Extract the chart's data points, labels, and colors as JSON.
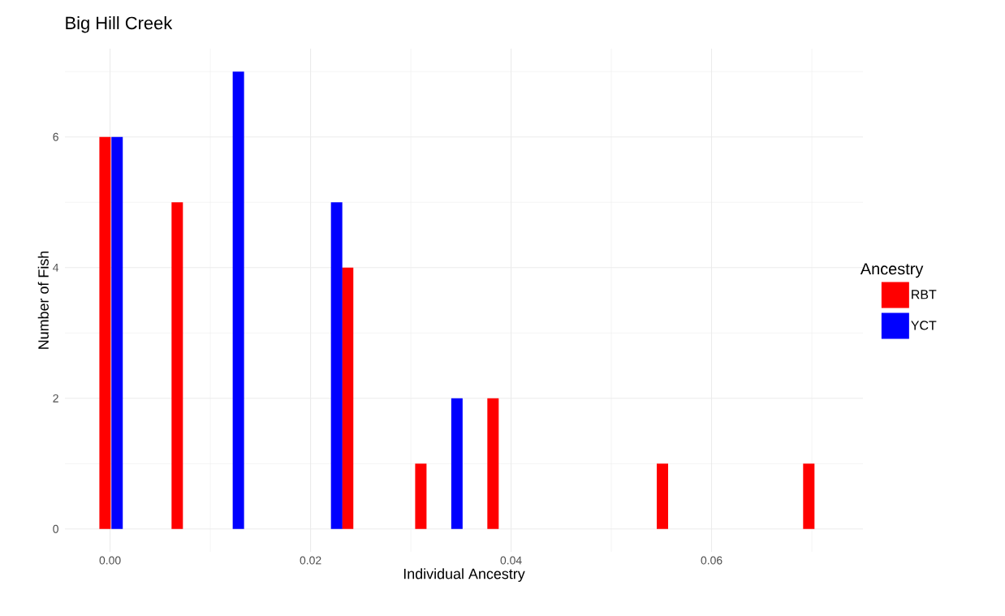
{
  "chart_data": {
    "type": "bar",
    "title": "Big Hill Creek",
    "xlabel": "Individual Ancestry",
    "ylabel": "Number of Fish",
    "legend_title": "Ancestry",
    "series": [
      {
        "name": "RBT",
        "color": "#ff0000",
        "x": [
          -0.0005,
          0.0067,
          0.0237,
          0.031,
          0.0382,
          0.0551,
          0.0697
        ],
        "values": [
          6,
          5,
          4,
          1,
          2,
          1,
          1
        ]
      },
      {
        "name": "YCT",
        "color": "#0000ff",
        "x": [
          0.0007,
          0.0128,
          0.0226,
          0.0346
        ],
        "values": [
          6,
          7,
          5,
          2
        ]
      }
    ],
    "xlim": [
      -0.0045,
      0.0751
    ],
    "ylim": [
      -0.35,
      7.35
    ],
    "xticks": [
      {
        "value": 0,
        "label": "0.00"
      },
      {
        "value": 0.02,
        "label": "0.02"
      },
      {
        "value": 0.04,
        "label": "0.04"
      },
      {
        "value": 0.06,
        "label": "0.06"
      }
    ],
    "yticks": [
      0,
      2,
      4,
      6
    ],
    "grid": true,
    "legend": "right"
  }
}
